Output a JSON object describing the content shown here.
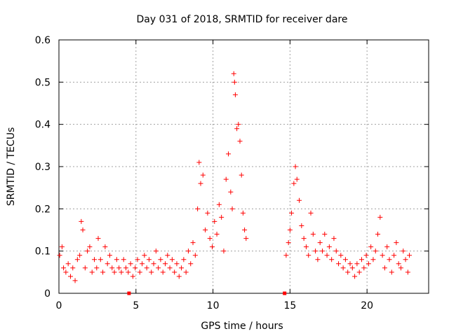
{
  "chart_data": {
    "type": "scatter",
    "title": "Day 031 of 2018, SRMTID for receiver dare",
    "xlabel": "GPS time / hours",
    "ylabel": "SRMTID / TECUs",
    "xlim": [
      0,
      24
    ],
    "ylim": [
      0,
      0.6
    ],
    "x_ticks": [
      0,
      5,
      10,
      15,
      20
    ],
    "x_tick_labels": [
      "0",
      "5",
      "10",
      "15",
      "20"
    ],
    "y_ticks": [
      0,
      0.1,
      0.2,
      0.3,
      0.4,
      0.5,
      0.6
    ],
    "y_tick_labels": [
      "0",
      "0.1",
      "0.2",
      "0.3",
      "0.4",
      "0.5",
      "0.6"
    ],
    "grid": true,
    "marker": "plus",
    "series": [
      {
        "name": "SRMTID",
        "color": "#ff0000",
        "points": [
          [
            0.05,
            0.09
          ],
          [
            0.2,
            0.11
          ],
          [
            0.3,
            0.06
          ],
          [
            0.45,
            0.05
          ],
          [
            0.6,
            0.07
          ],
          [
            0.75,
            0.04
          ],
          [
            0.9,
            0.06
          ],
          [
            1.05,
            0.03
          ],
          [
            1.2,
            0.08
          ],
          [
            1.35,
            0.09
          ],
          [
            1.45,
            0.17
          ],
          [
            1.55,
            0.15
          ],
          [
            1.7,
            0.06
          ],
          [
            1.85,
            0.1
          ],
          [
            2.0,
            0.11
          ],
          [
            2.15,
            0.05
          ],
          [
            2.3,
            0.08
          ],
          [
            2.45,
            0.06
          ],
          [
            2.55,
            0.13
          ],
          [
            2.7,
            0.08
          ],
          [
            2.85,
            0.05
          ],
          [
            3.0,
            0.11
          ],
          [
            3.15,
            0.07
          ],
          [
            3.3,
            0.09
          ],
          [
            3.45,
            0.06
          ],
          [
            3.6,
            0.05
          ],
          [
            3.75,
            0.08
          ],
          [
            3.9,
            0.06
          ],
          [
            4.05,
            0.05
          ],
          [
            4.2,
            0.08
          ],
          [
            4.35,
            0.06
          ],
          [
            4.5,
            0.05
          ],
          [
            4.65,
            0.07
          ],
          [
            4.8,
            0.04
          ],
          [
            4.95,
            0.06
          ],
          [
            5.1,
            0.08
          ],
          [
            5.25,
            0.05
          ],
          [
            5.4,
            0.07
          ],
          [
            5.55,
            0.09
          ],
          [
            5.7,
            0.06
          ],
          [
            5.85,
            0.08
          ],
          [
            6.0,
            0.05
          ],
          [
            6.15,
            0.07
          ],
          [
            6.3,
            0.1
          ],
          [
            6.45,
            0.06
          ],
          [
            6.6,
            0.08
          ],
          [
            6.75,
            0.05
          ],
          [
            6.9,
            0.07
          ],
          [
            7.05,
            0.09
          ],
          [
            7.2,
            0.06
          ],
          [
            7.35,
            0.08
          ],
          [
            7.5,
            0.05
          ],
          [
            7.65,
            0.07
          ],
          [
            7.8,
            0.04
          ],
          [
            7.95,
            0.06
          ],
          [
            8.1,
            0.08
          ],
          [
            8.25,
            0.05
          ],
          [
            8.4,
            0.1
          ],
          [
            8.55,
            0.07
          ],
          [
            8.7,
            0.12
          ],
          [
            8.85,
            0.09
          ],
          [
            9.0,
            0.2
          ],
          [
            9.1,
            0.31
          ],
          [
            9.2,
            0.26
          ],
          [
            9.35,
            0.28
          ],
          [
            9.5,
            0.15
          ],
          [
            9.65,
            0.19
          ],
          [
            9.8,
            0.13
          ],
          [
            9.95,
            0.11
          ],
          [
            10.1,
            0.17
          ],
          [
            10.25,
            0.14
          ],
          [
            10.4,
            0.21
          ],
          [
            10.55,
            0.18
          ],
          [
            10.7,
            0.1
          ],
          [
            10.85,
            0.27
          ],
          [
            11.0,
            0.33
          ],
          [
            11.15,
            0.24
          ],
          [
            11.25,
            0.2
          ],
          [
            11.35,
            0.52
          ],
          [
            11.4,
            0.5
          ],
          [
            11.45,
            0.47
          ],
          [
            11.55,
            0.39
          ],
          [
            11.65,
            0.4
          ],
          [
            11.75,
            0.36
          ],
          [
            11.85,
            0.28
          ],
          [
            11.95,
            0.19
          ],
          [
            12.05,
            0.15
          ],
          [
            12.15,
            0.13
          ],
          [
            14.75,
            0.09
          ],
          [
            14.9,
            0.12
          ],
          [
            15.0,
            0.15
          ],
          [
            15.1,
            0.19
          ],
          [
            15.25,
            0.26
          ],
          [
            15.35,
            0.3
          ],
          [
            15.45,
            0.27
          ],
          [
            15.6,
            0.22
          ],
          [
            15.75,
            0.16
          ],
          [
            15.9,
            0.13
          ],
          [
            16.05,
            0.11
          ],
          [
            16.2,
            0.09
          ],
          [
            16.35,
            0.19
          ],
          [
            16.5,
            0.14
          ],
          [
            16.65,
            0.1
          ],
          [
            16.8,
            0.08
          ],
          [
            16.95,
            0.12
          ],
          [
            17.1,
            0.1
          ],
          [
            17.25,
            0.14
          ],
          [
            17.4,
            0.09
          ],
          [
            17.55,
            0.11
          ],
          [
            17.7,
            0.08
          ],
          [
            17.85,
            0.13
          ],
          [
            18.0,
            0.1
          ],
          [
            18.15,
            0.07
          ],
          [
            18.3,
            0.09
          ],
          [
            18.45,
            0.06
          ],
          [
            18.6,
            0.08
          ],
          [
            18.75,
            0.05
          ],
          [
            18.9,
            0.07
          ],
          [
            19.05,
            0.06
          ],
          [
            19.2,
            0.04
          ],
          [
            19.35,
            0.07
          ],
          [
            19.5,
            0.05
          ],
          [
            19.65,
            0.08
          ],
          [
            19.8,
            0.06
          ],
          [
            19.95,
            0.09
          ],
          [
            20.1,
            0.07
          ],
          [
            20.25,
            0.11
          ],
          [
            20.4,
            0.08
          ],
          [
            20.55,
            0.1
          ],
          [
            20.7,
            0.14
          ],
          [
            20.85,
            0.18
          ],
          [
            21.0,
            0.09
          ],
          [
            21.15,
            0.06
          ],
          [
            21.3,
            0.11
          ],
          [
            21.45,
            0.08
          ],
          [
            21.6,
            0.05
          ],
          [
            21.75,
            0.09
          ],
          [
            21.9,
            0.12
          ],
          [
            22.05,
            0.07
          ],
          [
            22.2,
            0.06
          ],
          [
            22.35,
            0.1
          ],
          [
            22.5,
            0.08
          ],
          [
            22.65,
            0.05
          ],
          [
            22.75,
            0.09
          ]
        ]
      }
    ],
    "gap_markers": [
      {
        "x": 4.55,
        "y": 0,
        "color": "#ff0000"
      },
      {
        "x": 14.65,
        "y": 0,
        "color": "#ff0000"
      }
    ]
  }
}
